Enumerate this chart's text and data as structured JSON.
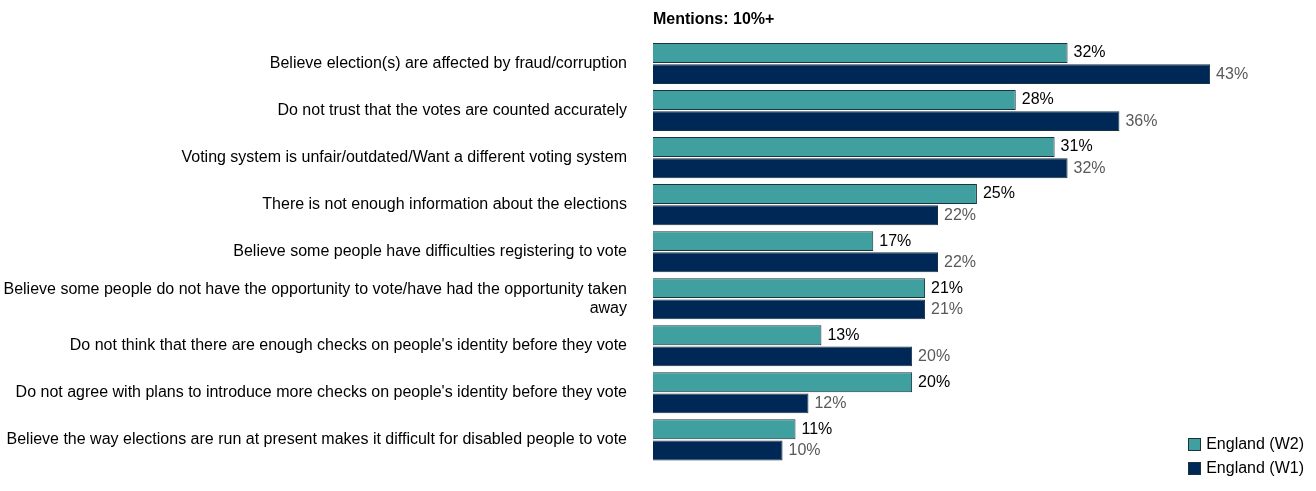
{
  "chart_data": {
    "type": "bar",
    "orientation": "horizontal",
    "title": "Mentions: 10%+",
    "legend": "bottom right",
    "categories": [
      "Believe election(s) are affected by fraud/corruption",
      "Do not trust that the votes are counted accurately",
      "Voting system is unfair/outdated/Want a different voting system",
      "There is not enough information about the elections",
      "Believe some people have difficulties registering to vote",
      "Believe some people do not have the opportunity to vote/have had the opportunity taken away",
      "Do not think that there are enough checks on people's identity before they vote",
      "Do not agree with plans to introduce more checks on people's identity before they vote",
      "Believe the way elections are run at present makes it difficult for disabled people to vote"
    ],
    "series": [
      {
        "name": "England (W2)",
        "color": "#40a0a0",
        "values": [
          32,
          28,
          31,
          25,
          17,
          21,
          13,
          20,
          11
        ],
        "value_labels": [
          "32%",
          "28%",
          "31%",
          "25%",
          "17%",
          "21%",
          "13%",
          "20%",
          "11%"
        ]
      },
      {
        "name": "England (W1)",
        "color": "#002856",
        "values": [
          43,
          36,
          32,
          22,
          22,
          21,
          20,
          12,
          10
        ],
        "value_labels": [
          "43%",
          "36%",
          "32%",
          "22%",
          "22%",
          "21%",
          "20%",
          "12%",
          "10%"
        ]
      }
    ]
  }
}
